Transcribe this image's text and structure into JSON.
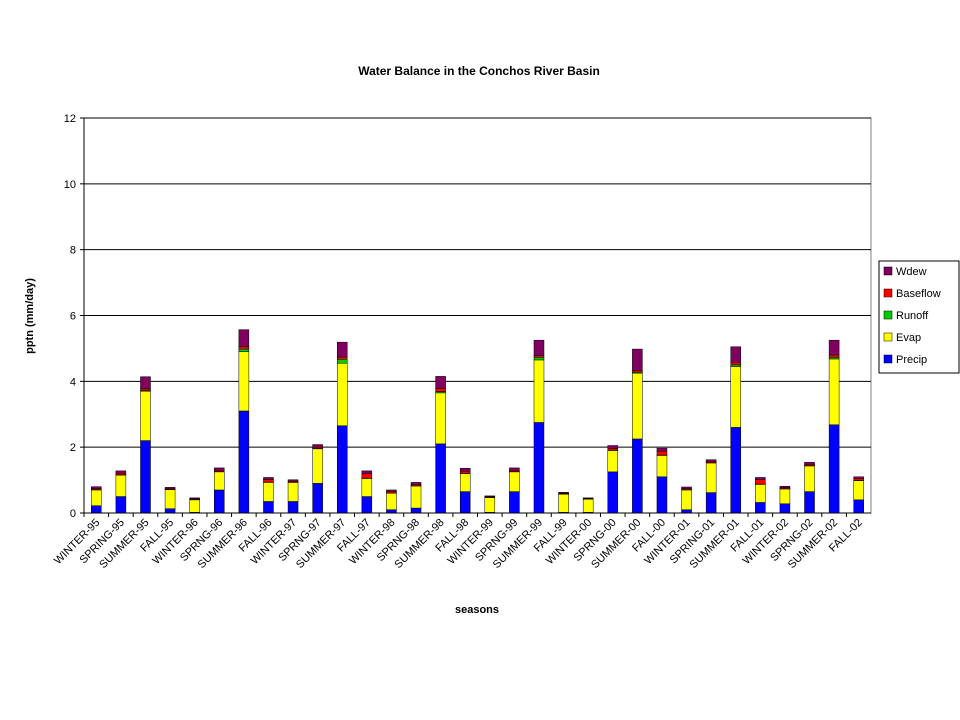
{
  "chart_data": {
    "type": "bar",
    "stacked": true,
    "title": "Water Balance in the Conchos River Basin",
    "xlabel": "seasons",
    "ylabel": "pptn (mm/day)",
    "ylim": [
      0,
      12
    ],
    "yticks": [
      0,
      2,
      4,
      6,
      8,
      10,
      12
    ],
    "grid": true,
    "legend_position": "right",
    "categories": [
      "WINTER-95",
      "SPRING-95",
      "SUMMER-95",
      "FALL-95",
      "WINTER-96",
      "SPRNG-96",
      "SUMMER-96",
      "FALL-96",
      "WINTER-97",
      "SPRNG-97",
      "SUMMER-97",
      "FALL-97",
      "WINTER-98",
      "SPRNG-98",
      "SUMMER-98",
      "FALL-98",
      "WINTER-99",
      "SPRNG-99",
      "SUMMER-99",
      "FALL-99",
      "WINTER-00",
      "SPRNG-00",
      "SUMMER-00",
      "FALL-00",
      "WINTER-01",
      "SPRING-01",
      "SUMMER-01",
      "FALL-01",
      "WINTER-02",
      "SPRNG-02",
      "SUMMER-02",
      "FALL-02"
    ],
    "series": [
      {
        "name": "Precip",
        "color": "#0000ff",
        "values": [
          0.22,
          0.5,
          2.2,
          0.13,
          0.02,
          0.7,
          3.1,
          0.35,
          0.35,
          0.9,
          2.65,
          0.5,
          0.1,
          0.15,
          2.1,
          0.65,
          0.02,
          0.65,
          2.75,
          0.02,
          0.02,
          1.25,
          2.25,
          1.1,
          0.1,
          0.62,
          2.6,
          0.32,
          0.28,
          0.65,
          2.68,
          0.4
        ]
      },
      {
        "name": "Evap",
        "color": "#ffff00",
        "values": [
          0.48,
          0.65,
          1.5,
          0.58,
          0.38,
          0.55,
          1.8,
          0.58,
          0.58,
          1.05,
          1.9,
          0.55,
          0.5,
          0.67,
          1.55,
          0.55,
          0.45,
          0.6,
          1.9,
          0.55,
          0.4,
          0.65,
          2.0,
          0.65,
          0.6,
          0.9,
          1.85,
          0.55,
          0.45,
          0.78,
          2.0,
          0.58
        ]
      },
      {
        "name": "Runoff",
        "color": "#00cc00",
        "values": [
          0.01,
          0.01,
          0.02,
          0.01,
          0.01,
          0.01,
          0.08,
          0.01,
          0.01,
          0.01,
          0.12,
          0.01,
          0.01,
          0.01,
          0.04,
          0.01,
          0.01,
          0.01,
          0.08,
          0.01,
          0.01,
          0.01,
          0.03,
          0.01,
          0.01,
          0.01,
          0.05,
          0.01,
          0.01,
          0.01,
          0.05,
          0.01
        ]
      },
      {
        "name": "Baseflow",
        "color": "#ff0000",
        "values": [
          0.03,
          0.05,
          0.05,
          0.03,
          0.02,
          0.04,
          0.07,
          0.08,
          0.03,
          0.04,
          0.07,
          0.13,
          0.05,
          0.04,
          0.09,
          0.06,
          0.02,
          0.04,
          0.05,
          0.02,
          0.02,
          0.05,
          0.05,
          0.12,
          0.03,
          0.04,
          0.08,
          0.13,
          0.03,
          0.04,
          0.07,
          0.05
        ]
      },
      {
        "name": "Wdew",
        "color": "#800060",
        "values": [
          0.06,
          0.07,
          0.37,
          0.03,
          0.03,
          0.07,
          0.52,
          0.06,
          0.04,
          0.08,
          0.45,
          0.09,
          0.04,
          0.06,
          0.37,
          0.09,
          0.02,
          0.07,
          0.47,
          0.03,
          0.01,
          0.09,
          0.65,
          0.09,
          0.05,
          0.05,
          0.47,
          0.07,
          0.04,
          0.06,
          0.45,
          0.06
        ]
      }
    ]
  }
}
